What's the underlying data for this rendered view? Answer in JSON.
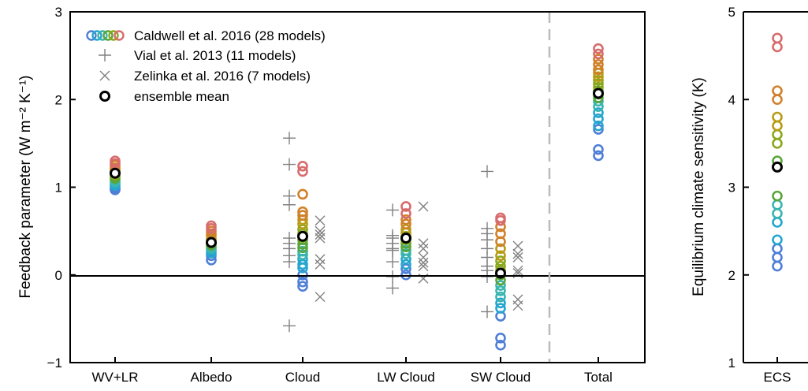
{
  "chart_data": [
    {
      "type": "scatter",
      "ylabel": "Feedback parameter (W m⁻² K⁻¹)",
      "ylim": [
        -1,
        3
      ],
      "yticks": [
        -1,
        0,
        1,
        2,
        3
      ],
      "ytick_labels": [
        "−1",
        "0",
        "1",
        "2",
        "3"
      ],
      "categories": [
        "WV+LR",
        "Albedo",
        "Cloud",
        "LW Cloud",
        "SW Cloud",
        "Total"
      ],
      "reference_line": 0,
      "grid": false,
      "legend_position": "top-left",
      "series": [
        {
          "name": "Caldwell et al. 2016 (28 models)",
          "marker": "circle",
          "colors": [
            "#4f7fd6",
            "#25a6cf",
            "#3ab5b0",
            "#5aa53a",
            "#8aa81d",
            "#b89b17",
            "#d0812b",
            "#d86c6c"
          ],
          "values": {
            "WV+LR": [
              0.97,
              0.98,
              1.0,
              1.02,
              1.04,
              1.06,
              1.08,
              1.1,
              1.12,
              1.14,
              1.16,
              1.18,
              1.2,
              1.22,
              1.25,
              1.27,
              1.3
            ],
            "Albedo": [
              0.17,
              0.22,
              0.25,
              0.28,
              0.3,
              0.32,
              0.34,
              0.36,
              0.38,
              0.4,
              0.42,
              0.45,
              0.47,
              0.5,
              0.53,
              0.56
            ],
            "Cloud": [
              -0.13,
              -0.08,
              0.0,
              0.08,
              0.12,
              0.18,
              0.23,
              0.27,
              0.31,
              0.35,
              0.4,
              0.43,
              0.47,
              0.52,
              0.58,
              0.63,
              0.68,
              0.72,
              0.92,
              1.18,
              1.24
            ],
            "LW Cloud": [
              0.0,
              0.07,
              0.12,
              0.18,
              0.24,
              0.28,
              0.32,
              0.36,
              0.4,
              0.44,
              0.48,
              0.52,
              0.58,
              0.63,
              0.7,
              0.78
            ],
            "SW Cloud": [
              -0.8,
              -0.72,
              -0.47,
              -0.38,
              -0.32,
              -0.25,
              -0.18,
              -0.12,
              -0.06,
              0.0,
              0.05,
              0.1,
              0.16,
              0.22,
              0.3,
              0.38,
              0.47,
              0.55,
              0.62,
              0.65
            ],
            "Total": [
              1.36,
              1.43,
              1.66,
              1.7,
              1.78,
              1.85,
              1.92,
              1.98,
              2.02,
              2.06,
              2.1,
              2.14,
              2.18,
              2.22,
              2.26,
              2.3,
              2.34,
              2.4,
              2.46,
              2.52,
              2.58
            ]
          }
        },
        {
          "name": "Vial et al. 2013 (11 models)",
          "marker": "plus",
          "color": "#808080",
          "values": {
            "Cloud": [
              -0.58,
              0.15,
              0.22,
              0.3,
              0.36,
              0.42,
              0.8,
              0.9,
              1.26,
              1.56
            ],
            "LW Cloud": [
              -0.15,
              -0.02,
              0.15,
              0.28,
              0.3,
              0.36,
              0.42,
              0.45,
              0.74
            ],
            "SW Cloud": [
              -0.42,
              -0.02,
              0.05,
              0.1,
              0.2,
              0.3,
              0.4,
              0.47,
              0.53,
              1.18
            ]
          }
        },
        {
          "name": "Zelinka et al. 2016 (7 models)",
          "marker": "x",
          "color": "#808080",
          "values": {
            "Cloud": [
              -0.25,
              0.12,
              0.18,
              0.42,
              0.46,
              0.5,
              0.62
            ],
            "LW Cloud": [
              -0.04,
              0.1,
              0.14,
              0.2,
              0.3,
              0.36,
              0.78
            ],
            "SW Cloud": [
              -0.35,
              -0.28,
              0.02,
              0.05,
              0.2,
              0.24,
              0.33
            ]
          }
        },
        {
          "name": "ensemble mean",
          "marker": "circle-bold",
          "color": "#000000",
          "values": {
            "WV+LR": [
              1.16
            ],
            "Albedo": [
              0.37
            ],
            "Cloud": [
              0.44
            ],
            "LW Cloud": [
              0.42
            ],
            "SW Cloud": [
              0.02
            ],
            "Total": [
              2.07
            ]
          }
        }
      ]
    },
    {
      "type": "scatter",
      "ylabel": "Equilibrium climate sensitivity (K)",
      "ylim": [
        1,
        5
      ],
      "yticks": [
        1,
        2,
        3,
        4,
        5
      ],
      "ytick_labels": [
        "1",
        "2",
        "3",
        "4",
        "5"
      ],
      "categories": [
        "ECS"
      ],
      "series": [
        {
          "name": "Caldwell et al. 2016 (28 models)",
          "marker": "circle",
          "values": [
            2.1,
            2.2,
            2.3,
            2.4,
            2.6,
            2.7,
            2.8,
            2.9,
            3.3,
            3.5,
            3.6,
            3.7,
            3.8,
            4.0,
            4.1,
            4.6,
            4.7
          ]
        },
        {
          "name": "ensemble mean",
          "marker": "circle-bold",
          "values": [
            3.23
          ]
        }
      ]
    }
  ]
}
